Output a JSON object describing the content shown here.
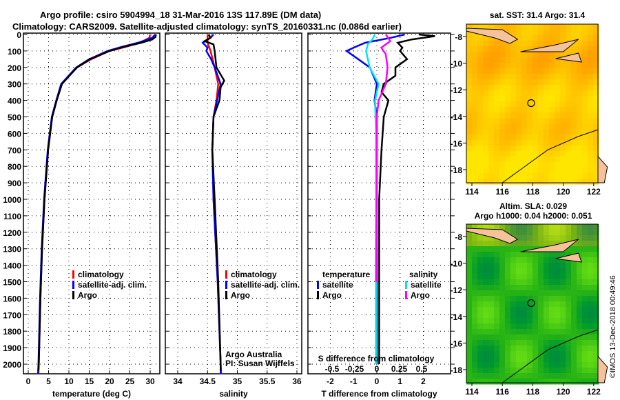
{
  "title_line1": "Argo profile: csiro 5904994_18 31-Mar-2016 13S 117.89E (DM data)",
  "title_line2": "Climatology: CARS2009. Satellite-adjusted climatology: synTS_20160331.nc (0.086d earlier)",
  "credit": [
    "Argo Australia",
    "PI: Susan Wijffels"
  ],
  "watermark": "©IMOS 13-Dec-2018 00:49:46",
  "colors": {
    "climatology": "#ff0000",
    "satellite": "#0000ff",
    "argo": "#000000",
    "sal_satellite": "#00e5ee",
    "sal_argo": "#ff00ff"
  },
  "chart_data": [
    {
      "type": "line",
      "name": "temperature",
      "xlabel": "temperature (deg C)",
      "xlim": [
        -1,
        32
      ],
      "ylim": [
        2070,
        0
      ],
      "xticks": [
        0,
        5,
        10,
        15,
        20,
        25,
        30
      ],
      "yticks": [
        0,
        100,
        200,
        300,
        400,
        500,
        600,
        700,
        800,
        900,
        1000,
        1100,
        1200,
        1300,
        1400,
        1500,
        1600,
        1700,
        1800,
        1900,
        2000
      ],
      "legend": [
        "climatology",
        "satellite-adj. clim.",
        "Argo"
      ],
      "series": [
        {
          "name": "climatology",
          "depth": [
            0,
            20,
            50,
            75,
            100,
            150,
            200,
            300,
            400,
            500,
            700,
            1000,
            1300,
            1600,
            2000,
            2060
          ],
          "values": [
            30.0,
            29.8,
            27.5,
            24,
            20,
            15.5,
            12,
            8.2,
            7,
            5.9,
            4.9,
            4.0,
            3.4,
            3.0,
            2.6,
            2.5
          ]
        },
        {
          "name": "satellite-adj. clim.",
          "depth": [
            0,
            20,
            50,
            75,
            100,
            150,
            200,
            300,
            400,
            500,
            700,
            1000,
            1300,
            1600,
            2000,
            2060
          ],
          "values": [
            31.2,
            30.5,
            27,
            23,
            19.5,
            15,
            11.8,
            8.1,
            6.9,
            5.8,
            4.8,
            3.9,
            3.3,
            2.9,
            2.5,
            2.4
          ]
        },
        {
          "name": "Argo",
          "depth": [
            0,
            15,
            30,
            50,
            75,
            100,
            150,
            200,
            300,
            400,
            500,
            700,
            1000,
            1300,
            1600,
            2000,
            2040
          ],
          "values": [
            31.4,
            31.3,
            30.5,
            27.8,
            23.5,
            20,
            15.2,
            12,
            8.3,
            7,
            5.9,
            4.9,
            4.0,
            3.4,
            3.0,
            2.6,
            2.5
          ]
        }
      ]
    },
    {
      "type": "line",
      "name": "salinity",
      "xlabel": "salinity",
      "xlim": [
        33.8,
        36.1
      ],
      "ylim": [
        2070,
        0
      ],
      "xticks": [
        34,
        34.5,
        35,
        35.5,
        36
      ],
      "legend": [
        "climatology",
        "satellite-adj. clim.",
        "Argo"
      ],
      "series": [
        {
          "name": "climatology",
          "depth": [
            0,
            50,
            100,
            200,
            300,
            400,
            500,
            700,
            1000,
            1500,
            2000,
            2060
          ],
          "values": [
            34.5,
            34.5,
            34.55,
            34.62,
            34.68,
            34.65,
            34.6,
            34.58,
            34.6,
            34.67,
            34.72,
            34.73
          ]
        },
        {
          "name": "satellite-adj. clim.",
          "depth": [
            0,
            20,
            50,
            80,
            100,
            150,
            200,
            300,
            400,
            500,
            700,
            1000,
            1500,
            2000,
            2060
          ],
          "values": [
            34.6,
            34.55,
            34.42,
            34.5,
            34.48,
            34.56,
            34.62,
            34.72,
            34.66,
            34.6,
            34.58,
            34.6,
            34.67,
            34.72,
            34.72
          ]
        },
        {
          "name": "Argo",
          "depth": [
            0,
            20,
            40,
            60,
            100,
            200,
            280,
            320,
            400,
            500,
            700,
            1000,
            1500,
            2000,
            2040
          ],
          "values": [
            34.52,
            34.55,
            34.45,
            34.6,
            34.62,
            34.65,
            34.78,
            34.72,
            34.7,
            34.6,
            34.58,
            34.62,
            34.68,
            34.72,
            34.72
          ]
        }
      ]
    },
    {
      "type": "line",
      "name": "differences",
      "xlabel": "T difference from climatology",
      "x2label": "S difference from climatology",
      "xlim": [
        -3,
        3
      ],
      "ylim": [
        2070,
        0
      ],
      "xticks": [
        -2,
        -1,
        0,
        1,
        2
      ],
      "x2ticks": [
        -0.5,
        -0.25,
        0,
        0.25,
        0.5
      ],
      "legend_titles": [
        "temperature",
        "salinity"
      ],
      "legend": [
        "satellite",
        "Argo",
        "satellite",
        "Argo"
      ],
      "series": [
        {
          "name": "temperature satellite",
          "axis": "T",
          "depth": [
            0,
            20,
            50,
            80,
            100,
            150,
            200,
            300,
            400,
            500,
            1000,
            1500,
            2000
          ],
          "values": [
            1.2,
            0.6,
            -0.5,
            -1.0,
            -1.3,
            -0.8,
            -0.3,
            0,
            -0.1,
            0,
            0,
            0,
            0
          ]
        },
        {
          "name": "temperature Argo",
          "axis": "T",
          "depth": [
            0,
            10,
            30,
            50,
            80,
            100,
            150,
            200,
            250,
            300,
            350,
            400,
            500,
            700,
            1000,
            1500,
            2000
          ],
          "values": [
            1.8,
            2.5,
            1.5,
            0.9,
            1.1,
            1.0,
            1.3,
            0.8,
            0.8,
            0.3,
            0.2,
            0.5,
            0.3,
            0.2,
            0.1,
            0.1,
            0.1
          ]
        },
        {
          "name": "salinity satellite",
          "axis": "S",
          "depth": [
            0,
            30,
            60,
            100,
            200,
            300,
            400,
            600,
            1000,
            1500,
            2000
          ],
          "values": [
            -0.02,
            -0.05,
            -0.1,
            -0.12,
            -0.08,
            0.02,
            -0.02,
            -0.01,
            -0.01,
            -0.01,
            -0.01
          ]
        },
        {
          "name": "salinity Argo",
          "axis": "S",
          "depth": [
            0,
            40,
            80,
            120,
            200,
            300,
            400,
            500,
            700,
            1000,
            1500
          ],
          "values": [
            0.1,
            0.15,
            0.05,
            0.1,
            0.12,
            0.1,
            0.02,
            0.0,
            0.0,
            0.0,
            -0.01
          ]
        }
      ]
    },
    {
      "type": "heatmap",
      "name": "sst-map",
      "title": "sat. SST: 31.4 Argo: 31.4",
      "xticks": [
        114,
        116,
        118,
        120,
        122
      ],
      "yticks": [
        -8,
        -10,
        -12,
        -14,
        -16,
        -18
      ],
      "xlim": [
        113.4,
        123.4
      ],
      "ylim": [
        -19,
        -7
      ],
      "marker": [
        117.89,
        -13
      ]
    },
    {
      "type": "heatmap",
      "name": "sla-map",
      "title": "Altim. SLA: 0.029",
      "subtitle": "Argo h1000: 0.04 h2000: 0.051",
      "xticks": [
        114,
        116,
        118,
        120,
        122
      ],
      "yticks": [
        -8,
        -10,
        -12,
        -14,
        -16,
        -18
      ],
      "xlim": [
        113.4,
        123.4
      ],
      "ylim": [
        -19,
        -7
      ],
      "marker": [
        117.89,
        -13
      ]
    }
  ]
}
